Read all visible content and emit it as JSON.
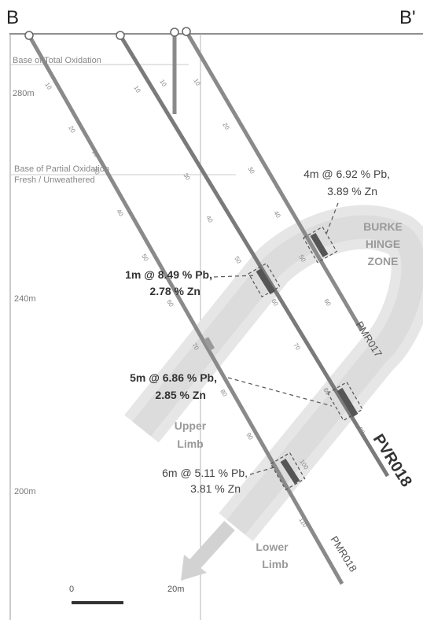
{
  "section": {
    "left_label": "B",
    "right_label": "B'"
  },
  "elevations": [
    "280m",
    "240m",
    "200m"
  ],
  "horizons": [
    "Base of Total Oxidation",
    "Base of Partial Oxidation",
    "Fresh / Unweathered"
  ],
  "zones": {
    "hinge": [
      "BURKE",
      "HINGE",
      "ZONE"
    ],
    "upper": [
      "Upper",
      "Limb"
    ],
    "lower": [
      "Lower",
      "Limb"
    ]
  },
  "intercepts": [
    {
      "line1": "4m @ 6.92 % Pb,",
      "line2": "3.89 % Zn"
    },
    {
      "line1": "1m @ 8.49 % Pb,",
      "line2": "2.78 % Zn"
    },
    {
      "line1": "5m @ 6.86 % Pb,",
      "line2": "2.85 % Zn"
    },
    {
      "line1": "6m @ 5.11 % Pb,",
      "line2": "3.81 % Zn"
    }
  ],
  "holes": [
    "PMR017",
    "PVR018",
    "PMR018"
  ],
  "depth_ticks": {
    "hole_a": [
      "10",
      "20",
      "30",
      "40",
      "50",
      "60",
      "70",
      "80",
      "90",
      "100",
      "110"
    ],
    "hole_b": [
      "10",
      "20",
      "30",
      "40",
      "50",
      "60",
      "70",
      "80",
      "90"
    ],
    "hole_c": [
      "10",
      "20",
      "30",
      "40",
      "50",
      "60"
    ],
    "short": [
      "10"
    ]
  },
  "scale_bar": {
    "start": "0",
    "end": "20m"
  }
}
